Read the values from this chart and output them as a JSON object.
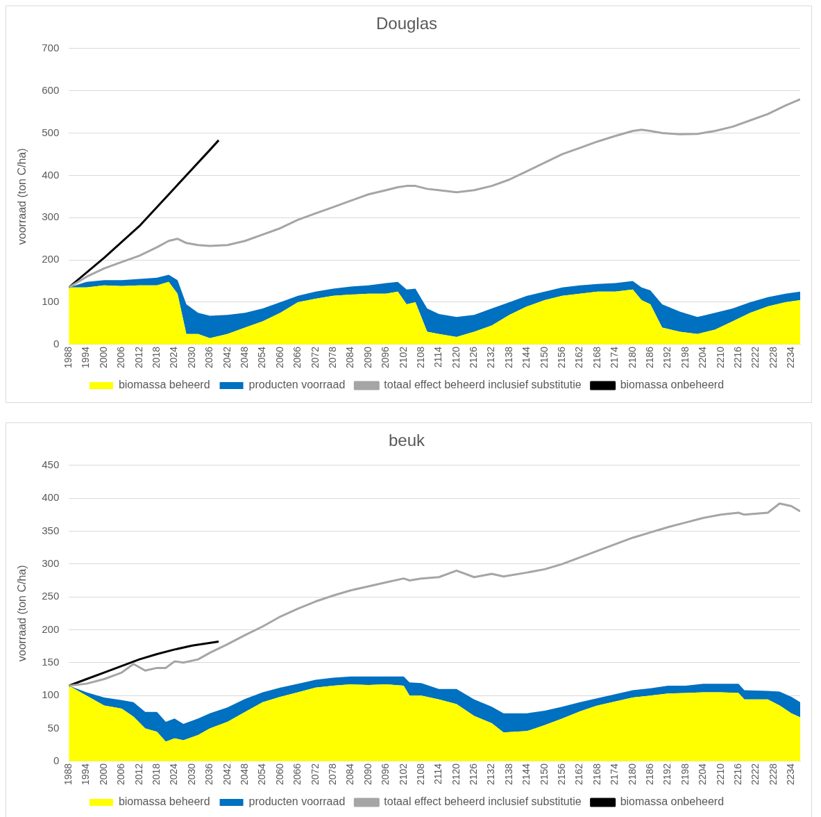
{
  "chart_data": [
    {
      "type": "area",
      "title": "Douglas",
      "ylabel": "voorraad (ton C/ha)",
      "stacked": true,
      "grid": "y",
      "legend": "bottom",
      "xlim": [
        1988,
        2237
      ],
      "xticks": [
        1988,
        1994,
        2000,
        2006,
        2012,
        2018,
        2024,
        2030,
        2036,
        2042,
        2048,
        2054,
        2060,
        2066,
        2072,
        2078,
        2084,
        2090,
        2096,
        2102,
        2108,
        2114,
        2120,
        2126,
        2132,
        2138,
        2144,
        2150,
        2156,
        2162,
        2168,
        2174,
        2180,
        2186,
        2192,
        2198,
        2204,
        2210,
        2216,
        2222,
        2228,
        2234
      ],
      "ylim": [
        0,
        700
      ],
      "yticks": [
        0,
        100,
        200,
        300,
        400,
        500,
        600,
        700
      ],
      "x": [
        1988,
        1994,
        2000,
        2006,
        2012,
        2018,
        2022,
        2025,
        2028,
        2032,
        2036,
        2042,
        2048,
        2054,
        2060,
        2066,
        2072,
        2078,
        2084,
        2090,
        2096,
        2100,
        2103,
        2106,
        2110,
        2114,
        2120,
        2126,
        2132,
        2138,
        2144,
        2150,
        2156,
        2162,
        2168,
        2174,
        2180,
        2183,
        2186,
        2190,
        2196,
        2202,
        2208,
        2214,
        2220,
        2226,
        2232,
        2237
      ],
      "series": [
        {
          "name": "biomassa beheerd",
          "color": "#ffff00",
          "values": [
            135,
            135,
            140,
            138,
            140,
            140,
            148,
            120,
            25,
            25,
            15,
            25,
            40,
            55,
            75,
            100,
            108,
            115,
            118,
            120,
            120,
            125,
            95,
            100,
            30,
            25,
            18,
            30,
            45,
            70,
            90,
            105,
            115,
            120,
            125,
            125,
            130,
            105,
            95,
            40,
            30,
            25,
            35,
            55,
            75,
            90,
            100,
            105
          ]
        },
        {
          "name": "producten voorraad",
          "color": "#0070c0",
          "values": [
            0,
            13,
            12,
            14,
            15,
            18,
            17,
            32,
            70,
            50,
            53,
            45,
            35,
            30,
            25,
            15,
            17,
            17,
            19,
            20,
            25,
            23,
            35,
            32,
            55,
            47,
            47,
            40,
            40,
            30,
            25,
            20,
            20,
            20,
            18,
            20,
            20,
            30,
            33,
            55,
            48,
            40,
            40,
            30,
            25,
            22,
            20,
            20
          ]
        },
        {
          "name": "totaal effect beheerd inclusief substitutie",
          "type": "line",
          "color": "#a5a5a5",
          "values": [
            135,
            160,
            180,
            195,
            210,
            230,
            245,
            250,
            240,
            235,
            233,
            235,
            245,
            260,
            275,
            295,
            310,
            325,
            340,
            355,
            365,
            372,
            375,
            375,
            368,
            365,
            360,
            365,
            375,
            390,
            410,
            430,
            450,
            465,
            480,
            493,
            505,
            508,
            505,
            500,
            497,
            498,
            505,
            515,
            530,
            545,
            565,
            580
          ]
        },
        {
          "name": "biomassa onbeheerd",
          "type": "line",
          "color": "#000000",
          "x": [
            1988,
            2000,
            2012,
            2024,
            2036,
            2039
          ],
          "values": [
            135,
            205,
            280,
            370,
            460,
            483
          ]
        }
      ]
    },
    {
      "type": "area",
      "title": "beuk",
      "ylabel": "voorraad (ton C/ha)",
      "stacked": true,
      "grid": "y",
      "legend": "bottom",
      "xlim": [
        1988,
        2237
      ],
      "xticks": [
        1988,
        1994,
        2000,
        2006,
        2012,
        2018,
        2024,
        2030,
        2036,
        2042,
        2048,
        2054,
        2060,
        2066,
        2072,
        2078,
        2084,
        2090,
        2096,
        2102,
        2108,
        2114,
        2120,
        2126,
        2132,
        2138,
        2144,
        2150,
        2156,
        2162,
        2168,
        2174,
        2180,
        2186,
        2192,
        2198,
        2204,
        2210,
        2216,
        2222,
        2228,
        2234
      ],
      "ylim": [
        0,
        450
      ],
      "yticks": [
        0,
        50,
        100,
        150,
        200,
        250,
        300,
        350,
        400,
        450
      ],
      "x": [
        1988,
        1994,
        2000,
        2006,
        2010,
        2014,
        2018,
        2021,
        2024,
        2027,
        2032,
        2036,
        2042,
        2048,
        2054,
        2060,
        2066,
        2072,
        2078,
        2084,
        2090,
        2096,
        2102,
        2104,
        2108,
        2114,
        2120,
        2126,
        2132,
        2136,
        2144,
        2150,
        2156,
        2162,
        2168,
        2174,
        2180,
        2186,
        2192,
        2198,
        2204,
        2210,
        2216,
        2218,
        2226,
        2230,
        2234,
        2237
      ],
      "series": [
        {
          "name": "biomassa beheerd",
          "color": "#ffff00",
          "values": [
            115,
            100,
            85,
            80,
            68,
            50,
            45,
            30,
            35,
            32,
            40,
            50,
            60,
            75,
            90,
            98,
            105,
            112,
            115,
            117,
            116,
            117,
            115,
            100,
            100,
            94,
            87,
            69,
            58,
            44,
            46,
            55,
            65,
            76,
            85,
            91,
            97,
            100,
            103,
            104,
            105,
            105,
            104,
            94,
            94,
            85,
            73,
            67
          ]
        },
        {
          "name": "producten voorraad",
          "color": "#0070c0",
          "values": [
            0,
            5,
            12,
            13,
            22,
            25,
            30,
            30,
            30,
            25,
            25,
            23,
            22,
            20,
            15,
            14,
            13,
            12,
            12,
            12,
            13,
            12,
            14,
            20,
            19,
            16,
            23,
            25,
            25,
            29,
            27,
            22,
            18,
            14,
            11,
            11,
            11,
            11,
            12,
            11,
            13,
            13,
            14,
            14,
            13,
            21,
            25,
            23
          ]
        },
        {
          "name": "totaal effect beheerd inclusief substitutie",
          "type": "line",
          "color": "#a5a5a5",
          "values": [
            115,
            118,
            125,
            135,
            148,
            138,
            142,
            142,
            152,
            150,
            155,
            165,
            178,
            192,
            205,
            220,
            232,
            243,
            252,
            260,
            266,
            272,
            278,
            275,
            278,
            280,
            290,
            280,
            285,
            281,
            287,
            292,
            300,
            310,
            320,
            330,
            340,
            348,
            356,
            363,
            370,
            375,
            378,
            375,
            378,
            392,
            388,
            380
          ]
        },
        {
          "name": "biomassa onbeheerd",
          "type": "line",
          "color": "#000000",
          "x": [
            1988,
            1994,
            2000,
            2006,
            2012,
            2018,
            2024,
            2030,
            2039
          ],
          "values": [
            115,
            125,
            135,
            145,
            155,
            163,
            170,
            176,
            182
          ]
        }
      ]
    }
  ]
}
